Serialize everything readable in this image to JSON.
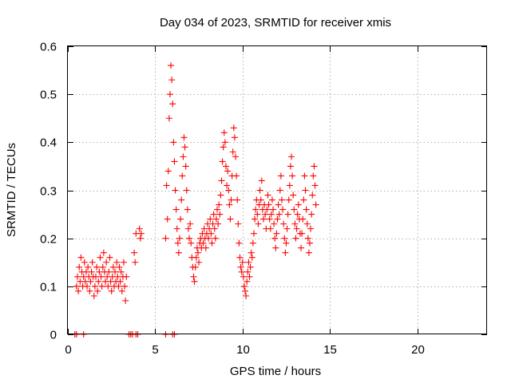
{
  "chart_data": {
    "type": "scatter",
    "title": "Day 034 of 2023, SRMTID for receiver xmis",
    "xlabel": "GPS time / hours",
    "ylabel": "SRMTID / TECUs",
    "xlim": [
      0,
      24
    ],
    "ylim": [
      0,
      0.6
    ],
    "xticks": [
      0,
      5,
      10,
      15,
      20
    ],
    "xtick_labels": [
      "0",
      "5",
      "10",
      "15",
      "20"
    ],
    "yticks": [
      0,
      0.1,
      0.2,
      0.3,
      0.4,
      0.5,
      0.6
    ],
    "ytick_labels": [
      "0",
      "0.1",
      "0.2",
      "0.3",
      "0.4",
      "0.5",
      "0.6"
    ],
    "grid": true,
    "marker": "plus",
    "color": "#ff0000",
    "series": [
      {
        "name": "SRMTID",
        "points": [
          [
            0.5,
            0.1
          ],
          [
            0.55,
            0.12
          ],
          [
            0.6,
            0.09
          ],
          [
            0.65,
            0.14
          ],
          [
            0.7,
            0.11
          ],
          [
            0.75,
            0.16
          ],
          [
            0.8,
            0.13
          ],
          [
            0.85,
            0.1
          ],
          [
            0.9,
            0.12
          ],
          [
            0.95,
            0.15
          ],
          [
            1.0,
            0.11
          ],
          [
            1.05,
            0.13
          ],
          [
            1.1,
            0.1
          ],
          [
            1.15,
            0.14
          ],
          [
            1.2,
            0.12
          ],
          [
            1.25,
            0.09
          ],
          [
            1.3,
            0.11
          ],
          [
            1.35,
            0.13
          ],
          [
            1.4,
            0.15
          ],
          [
            1.45,
            0.12
          ],
          [
            1.5,
            0.08
          ],
          [
            1.55,
            0.1
          ],
          [
            1.6,
            0.12
          ],
          [
            1.65,
            0.14
          ],
          [
            1.7,
            0.09
          ],
          [
            1.75,
            0.11
          ],
          [
            1.8,
            0.13
          ],
          [
            1.85,
            0.16
          ],
          [
            1.9,
            0.12
          ],
          [
            1.95,
            0.1
          ],
          [
            2.0,
            0.14
          ],
          [
            2.05,
            0.17
          ],
          [
            2.1,
            0.13
          ],
          [
            2.15,
            0.11
          ],
          [
            2.2,
            0.15
          ],
          [
            2.25,
            0.12
          ],
          [
            2.3,
            0.1
          ],
          [
            2.35,
            0.13
          ],
          [
            2.4,
            0.16
          ],
          [
            2.45,
            0.11
          ],
          [
            2.5,
            0.09
          ],
          [
            2.55,
            0.12
          ],
          [
            2.6,
            0.14
          ],
          [
            2.65,
            0.1
          ],
          [
            2.7,
            0.13
          ],
          [
            2.75,
            0.11
          ],
          [
            2.8,
            0.15
          ],
          [
            2.85,
            0.12
          ],
          [
            2.9,
            0.1
          ],
          [
            2.95,
            0.14
          ],
          [
            3.0,
            0.11
          ],
          [
            3.05,
            0.13
          ],
          [
            3.1,
            0.09
          ],
          [
            3.15,
            0.12
          ],
          [
            3.2,
            0.15
          ],
          [
            3.25,
            0.1
          ],
          [
            3.3,
            0.07
          ],
          [
            3.35,
            0.12
          ],
          [
            3.8,
            0.17
          ],
          [
            3.85,
            0.15
          ],
          [
            3.9,
            0.21
          ],
          [
            4.1,
            0.22
          ],
          [
            4.15,
            0.2
          ],
          [
            4.2,
            0.21
          ],
          [
            5.6,
            0.2
          ],
          [
            5.65,
            0.31
          ],
          [
            5.7,
            0.24
          ],
          [
            5.75,
            0.34
          ],
          [
            5.8,
            0.45
          ],
          [
            5.85,
            0.5
          ],
          [
            5.9,
            0.56
          ],
          [
            5.95,
            0.53
          ],
          [
            6.0,
            0.48
          ],
          [
            6.05,
            0.4
          ],
          [
            6.1,
            0.36
          ],
          [
            6.15,
            0.3
          ],
          [
            6.2,
            0.26
          ],
          [
            6.25,
            0.22
          ],
          [
            6.3,
            0.19
          ],
          [
            6.35,
            0.17
          ],
          [
            6.4,
            0.2
          ],
          [
            6.45,
            0.24
          ],
          [
            6.5,
            0.28
          ],
          [
            6.55,
            0.33
          ],
          [
            6.6,
            0.37
          ],
          [
            6.65,
            0.41
          ],
          [
            6.7,
            0.39
          ],
          [
            6.75,
            0.35
          ],
          [
            6.8,
            0.3
          ],
          [
            6.85,
            0.26
          ],
          [
            6.9,
            0.22
          ],
          [
            6.95,
            0.2
          ],
          [
            7.0,
            0.23
          ],
          [
            7.05,
            0.19
          ],
          [
            7.1,
            0.16
          ],
          [
            7.15,
            0.14
          ],
          [
            7.2,
            0.12
          ],
          [
            7.25,
            0.11
          ],
          [
            7.3,
            0.14
          ],
          [
            7.35,
            0.16
          ],
          [
            7.4,
            0.18
          ],
          [
            7.45,
            0.17
          ],
          [
            7.5,
            0.15
          ],
          [
            7.55,
            0.19
          ],
          [
            7.6,
            0.2
          ],
          [
            7.65,
            0.18
          ],
          [
            7.7,
            0.21
          ],
          [
            7.75,
            0.19
          ],
          [
            7.8,
            0.22
          ],
          [
            7.85,
            0.2
          ],
          [
            7.9,
            0.18
          ],
          [
            7.95,
            0.21
          ],
          [
            8.0,
            0.23
          ],
          [
            8.05,
            0.2
          ],
          [
            8.1,
            0.22
          ],
          [
            8.15,
            0.24
          ],
          [
            8.2,
            0.21
          ],
          [
            8.25,
            0.19
          ],
          [
            8.3,
            0.23
          ],
          [
            8.35,
            0.25
          ],
          [
            8.4,
            0.22
          ],
          [
            8.45,
            0.2
          ],
          [
            8.5,
            0.24
          ],
          [
            8.55,
            0.26
          ],
          [
            8.6,
            0.23
          ],
          [
            8.65,
            0.27
          ],
          [
            8.7,
            0.25
          ],
          [
            8.75,
            0.29
          ],
          [
            8.8,
            0.32
          ],
          [
            8.85,
            0.36
          ],
          [
            8.9,
            0.39
          ],
          [
            8.95,
            0.42
          ],
          [
            9.0,
            0.4
          ],
          [
            9.05,
            0.35
          ],
          [
            9.1,
            0.31
          ],
          [
            9.15,
            0.34
          ],
          [
            9.2,
            0.3
          ],
          [
            9.25,
            0.27
          ],
          [
            9.3,
            0.24
          ],
          [
            9.35,
            0.28
          ],
          [
            9.4,
            0.33
          ],
          [
            9.45,
            0.38
          ],
          [
            9.5,
            0.43
          ],
          [
            9.55,
            0.41
          ],
          [
            9.6,
            0.37
          ],
          [
            9.65,
            0.33
          ],
          [
            9.7,
            0.28
          ],
          [
            9.75,
            0.23
          ],
          [
            9.8,
            0.19
          ],
          [
            9.85,
            0.16
          ],
          [
            9.9,
            0.14
          ],
          [
            9.95,
            0.13
          ],
          [
            10.0,
            0.15
          ],
          [
            10.05,
            0.12
          ],
          [
            10.1,
            0.1
          ],
          [
            10.15,
            0.09
          ],
          [
            10.2,
            0.08
          ],
          [
            10.25,
            0.11
          ],
          [
            10.3,
            0.13
          ],
          [
            10.35,
            0.15
          ],
          [
            10.4,
            0.12
          ],
          [
            10.45,
            0.14
          ],
          [
            10.5,
            0.17
          ],
          [
            10.55,
            0.16
          ],
          [
            10.6,
            0.19
          ],
          [
            10.65,
            0.21
          ],
          [
            10.7,
            0.24
          ],
          [
            10.75,
            0.26
          ],
          [
            10.8,
            0.28
          ],
          [
            10.85,
            0.25
          ],
          [
            10.9,
            0.23
          ],
          [
            10.95,
            0.27
          ],
          [
            11.0,
            0.3
          ],
          [
            11.05,
            0.28
          ],
          [
            11.1,
            0.32
          ],
          [
            11.15,
            0.26
          ],
          [
            11.2,
            0.24
          ],
          [
            11.25,
            0.27
          ],
          [
            11.3,
            0.25
          ],
          [
            11.35,
            0.22
          ],
          [
            11.4,
            0.26
          ],
          [
            11.45,
            0.29
          ],
          [
            11.5,
            0.27
          ],
          [
            11.55,
            0.24
          ],
          [
            11.6,
            0.22
          ],
          [
            11.65,
            0.25
          ],
          [
            11.7,
            0.28
          ],
          [
            11.75,
            0.26
          ],
          [
            11.8,
            0.23
          ],
          [
            11.85,
            0.2
          ],
          [
            11.9,
            0.18
          ],
          [
            11.95,
            0.21
          ],
          [
            12.0,
            0.24
          ],
          [
            12.05,
            0.27
          ],
          [
            12.1,
            0.25
          ],
          [
            12.15,
            0.3
          ],
          [
            12.2,
            0.33
          ],
          [
            12.25,
            0.28
          ],
          [
            12.3,
            0.26
          ],
          [
            12.35,
            0.23
          ],
          [
            12.4,
            0.2
          ],
          [
            12.45,
            0.17
          ],
          [
            12.5,
            0.19
          ],
          [
            12.55,
            0.22
          ],
          [
            12.6,
            0.25
          ],
          [
            12.65,
            0.28
          ],
          [
            12.7,
            0.31
          ],
          [
            12.75,
            0.35
          ],
          [
            12.8,
            0.37
          ],
          [
            12.85,
            0.33
          ],
          [
            12.9,
            0.29
          ],
          [
            12.95,
            0.26
          ],
          [
            13.0,
            0.23
          ],
          [
            13.05,
            0.2
          ],
          [
            13.1,
            0.22
          ],
          [
            13.15,
            0.25
          ],
          [
            13.2,
            0.27
          ],
          [
            13.25,
            0.24
          ],
          [
            13.3,
            0.21
          ],
          [
            13.35,
            0.18
          ],
          [
            13.4,
            0.21
          ],
          [
            13.45,
            0.24
          ],
          [
            13.5,
            0.28
          ],
          [
            13.55,
            0.33
          ],
          [
            13.6,
            0.3
          ],
          [
            13.65,
            0.26
          ],
          [
            13.7,
            0.23
          ],
          [
            13.75,
            0.2
          ],
          [
            13.8,
            0.17
          ],
          [
            13.85,
            0.19
          ],
          [
            13.9,
            0.22
          ],
          [
            13.95,
            0.25
          ],
          [
            14.0,
            0.29
          ],
          [
            14.05,
            0.33
          ],
          [
            14.1,
            0.35
          ],
          [
            14.15,
            0.31
          ],
          [
            14.2,
            0.27
          ],
          [
            0.4,
            0.0
          ],
          [
            0.5,
            0.0
          ],
          [
            0.9,
            0.0
          ],
          [
            3.5,
            0.0
          ],
          [
            3.6,
            0.0
          ],
          [
            3.7,
            0.0
          ],
          [
            3.9,
            0.0
          ],
          [
            4.0,
            0.0
          ],
          [
            5.6,
            0.0
          ],
          [
            6.0,
            0.0
          ],
          [
            6.1,
            0.0
          ]
        ]
      }
    ]
  }
}
